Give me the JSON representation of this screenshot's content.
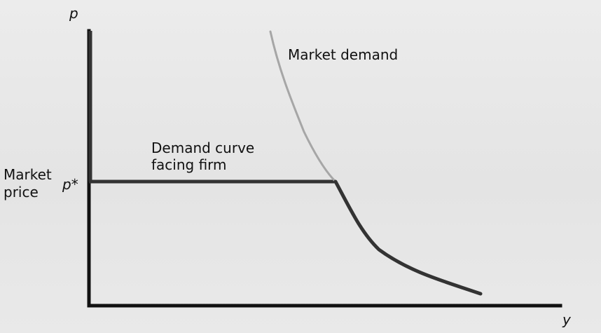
{
  "labels": {
    "y_axis": "p",
    "x_axis": "y",
    "market_demand": "Market demand",
    "demand_curve_line1": "Demand curve",
    "demand_curve_line2": "facing firm",
    "market_price_line1": "Market",
    "market_price_line2": "price",
    "p_star": "p*"
  }
}
